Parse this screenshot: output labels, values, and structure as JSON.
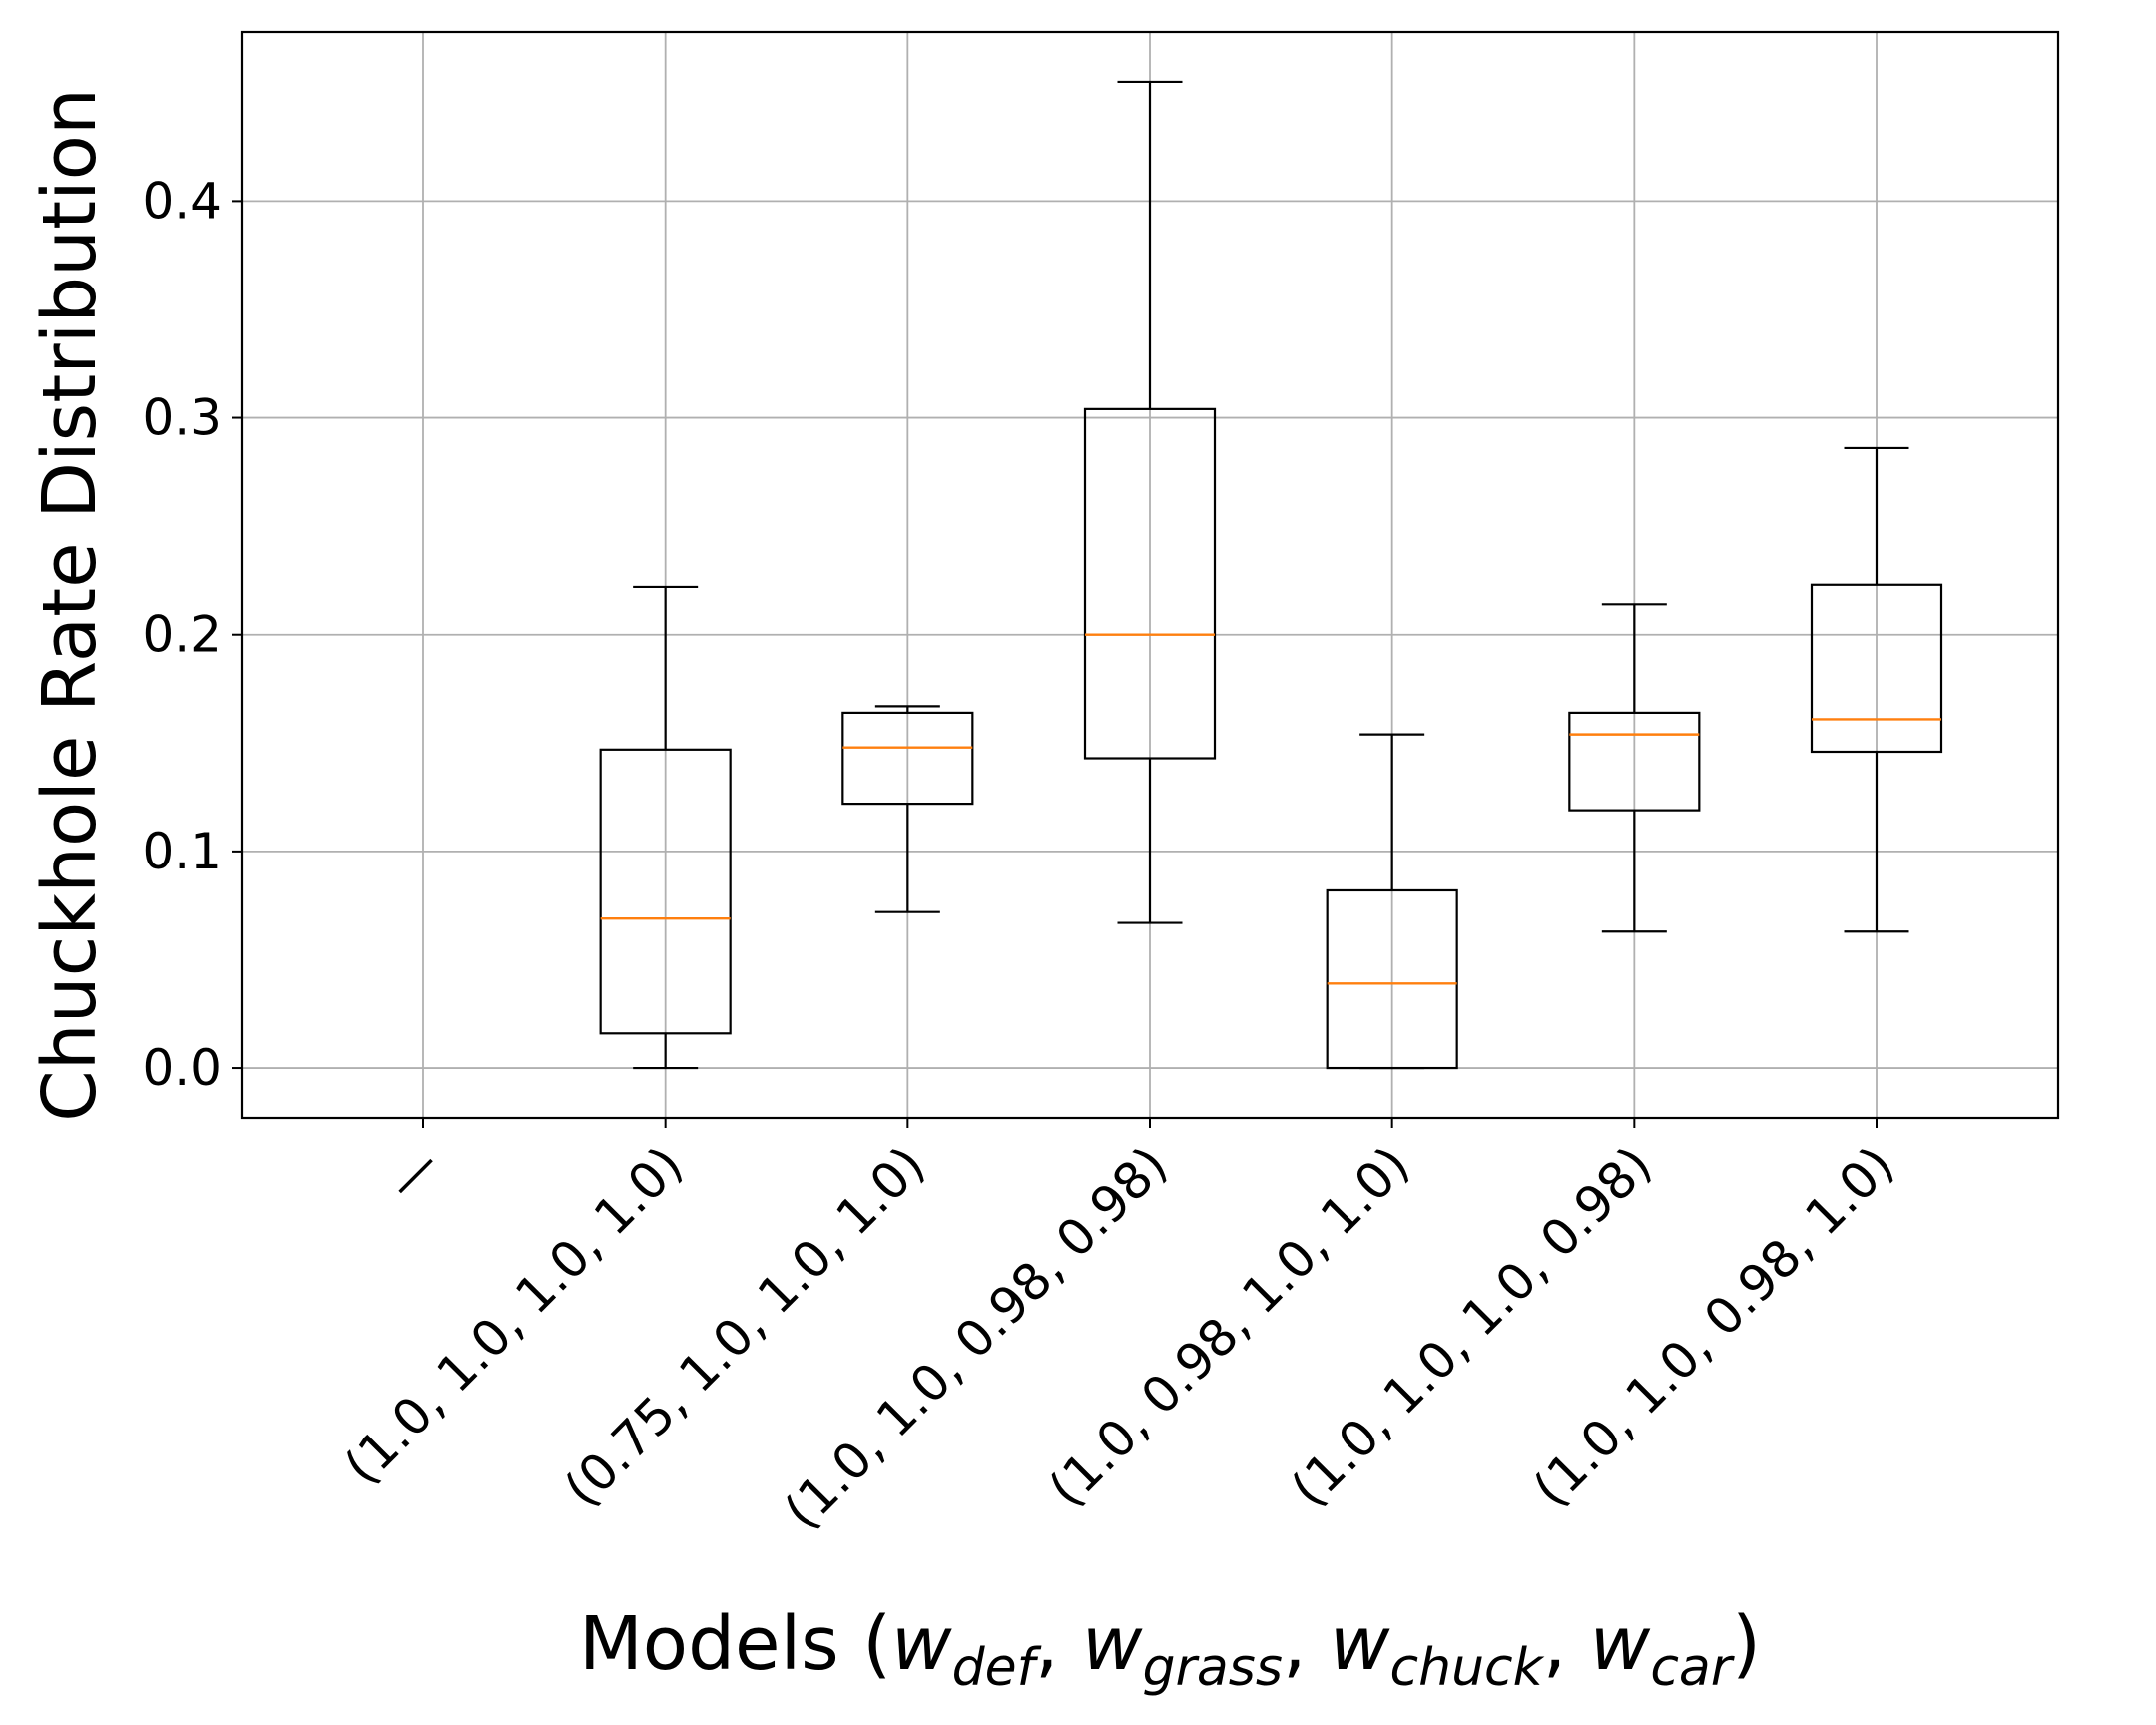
{
  "chart_data": {
    "type": "boxplot",
    "xlabel": {
      "prefix": "Models (",
      "terms": [
        {
          "base": "w",
          "sub": "def"
        },
        {
          "base": "w",
          "sub": "grass"
        },
        {
          "base": "w",
          "sub": "chuck"
        },
        {
          "base": "w",
          "sub": "car"
        }
      ],
      "separator": ", ",
      "suffix": ")"
    },
    "ylabel": "Chuckhole Rate Distribution",
    "ylim": [
      -0.023,
      0.478
    ],
    "yticks": [
      0.0,
      0.1,
      0.2,
      0.3,
      0.4
    ],
    "ytick_labels": [
      "0.0",
      "0.1",
      "0.2",
      "0.3",
      "0.4"
    ],
    "categories": [
      "—",
      "(1.0, 1.0, 1.0, 1.0)",
      "(0.75, 1.0, 1.0, 1.0)",
      "(1.0, 1.0, 0.98, 0.98)",
      "(1.0, 0.98, 1.0, 1.0)",
      "(1.0, 1.0, 1.0, 0.98)",
      "(1.0, 1.0, 0.98, 1.0)"
    ],
    "grid": true,
    "box_color": "#000000",
    "median_color": "#ff7f0e",
    "grid_color": "#b0b0b0",
    "boxes": [
      null,
      {
        "whislo": 0.0,
        "q1": 0.016,
        "med": 0.069,
        "q3": 0.147,
        "whishi": 0.222
      },
      {
        "whislo": 0.072,
        "q1": 0.122,
        "med": 0.148,
        "q3": 0.164,
        "whishi": 0.167
      },
      {
        "whislo": 0.067,
        "q1": 0.143,
        "med": 0.2,
        "q3": 0.304,
        "whishi": 0.455
      },
      {
        "whislo": 0.0,
        "q1": 0.0,
        "med": 0.039,
        "q3": 0.082,
        "whishi": 0.154
      },
      {
        "whislo": 0.063,
        "q1": 0.119,
        "med": 0.154,
        "q3": 0.164,
        "whishi": 0.214
      },
      {
        "whislo": 0.063,
        "q1": 0.146,
        "med": 0.161,
        "q3": 0.223,
        "whishi": 0.286
      }
    ]
  }
}
